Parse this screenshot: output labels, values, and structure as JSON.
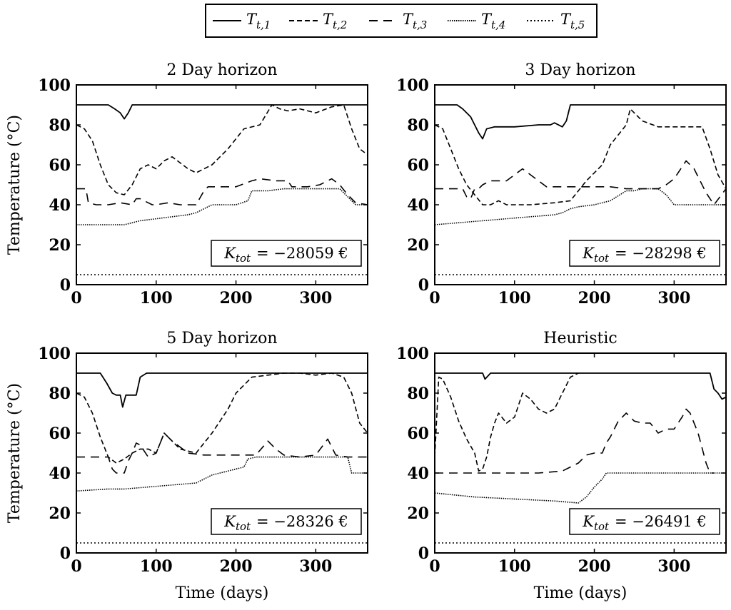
{
  "legend": {
    "entries": [
      {
        "label": "T",
        "sub": "t,1",
        "dash": "solid"
      },
      {
        "label": "T",
        "sub": "t,2",
        "dash": "dashed"
      },
      {
        "label": "T",
        "sub": "t,3",
        "dash": "longdash"
      },
      {
        "label": "T",
        "sub": "t,4",
        "dash": "densedot"
      },
      {
        "label": "T",
        "sub": "t,5",
        "dash": "dotted"
      }
    ]
  },
  "chart_data": [
    {
      "type": "line",
      "title": "2 Day horizon",
      "xlabel": "",
      "ylabel": "Temperature (°C)",
      "xlim": [
        0,
        365
      ],
      "ylim": [
        0,
        100
      ],
      "xticks": [
        0,
        100,
        200,
        300
      ],
      "yticks": [
        0,
        20,
        40,
        60,
        80,
        100
      ],
      "annotation": {
        "text": "K",
        "sub": "tot",
        "rest": "= −28059 €"
      },
      "series": [
        {
          "name": "T_t,1",
          "x": [
            0,
            40,
            48,
            55,
            60,
            65,
            70,
            80,
            120,
            200,
            300,
            365
          ],
          "y": [
            90,
            90,
            88,
            86,
            83,
            86,
            90,
            90,
            90,
            90,
            90,
            90
          ]
        },
        {
          "name": "T_t,2",
          "x": [
            0,
            10,
            20,
            30,
            40,
            50,
            60,
            70,
            80,
            90,
            100,
            110,
            120,
            140,
            150,
            170,
            190,
            210,
            230,
            245,
            255,
            265,
            280,
            300,
            320,
            335,
            345,
            355,
            365
          ],
          "y": [
            80,
            78,
            72,
            60,
            50,
            46,
            45,
            50,
            58,
            60,
            58,
            62,
            64,
            58,
            56,
            60,
            68,
            78,
            80,
            90,
            88,
            87,
            88,
            86,
            89,
            90,
            78,
            68,
            65
          ]
        },
        {
          "name": "T_t,3",
          "x": [
            0,
            12,
            15,
            25,
            30,
            40,
            55,
            70,
            75,
            80,
            90,
            95,
            100,
            115,
            130,
            150,
            160,
            165,
            170,
            200,
            220,
            230,
            250,
            265,
            270,
            290,
            305,
            320,
            330,
            340,
            350,
            365
          ],
          "y": [
            48,
            48,
            41,
            40,
            40,
            40,
            41,
            40,
            43,
            43,
            41,
            40,
            40,
            41,
            40,
            40,
            47,
            49,
            49,
            49,
            52,
            53,
            52,
            52,
            49,
            49,
            50,
            53,
            50,
            45,
            41,
            40
          ]
        },
        {
          "name": "T_t,4",
          "x": [
            0,
            30,
            50,
            60,
            80,
            100,
            120,
            140,
            150,
            160,
            170,
            180,
            200,
            215,
            220,
            240,
            260,
            290,
            330,
            340,
            350,
            365
          ],
          "y": [
            30,
            30,
            30,
            30,
            32,
            33,
            34,
            35,
            36,
            38,
            40,
            40,
            40,
            42,
            47,
            47,
            48,
            48,
            48,
            44,
            40,
            40
          ]
        },
        {
          "name": "T_t,5",
          "x": [
            0,
            365
          ],
          "y": [
            5,
            5
          ]
        }
      ]
    },
    {
      "type": "line",
      "title": "3 Day horizon",
      "xlabel": "",
      "ylabel": "",
      "xlim": [
        0,
        365
      ],
      "ylim": [
        0,
        100
      ],
      "xticks": [
        0,
        100,
        200,
        300
      ],
      "yticks": [
        0,
        20,
        40,
        60,
        80,
        100
      ],
      "annotation": {
        "text": "K",
        "sub": "tot",
        "rest": "= −28298 €"
      },
      "series": [
        {
          "name": "T_t,1",
          "x": [
            0,
            28,
            35,
            45,
            50,
            55,
            60,
            65,
            75,
            100,
            130,
            145,
            150,
            160,
            165,
            170,
            200,
            300,
            365
          ],
          "y": [
            90,
            90,
            88,
            84,
            80,
            76,
            73,
            78,
            79,
            79,
            80,
            80,
            81,
            79,
            82,
            90,
            90,
            90,
            90
          ]
        },
        {
          "name": "T_t,2",
          "x": [
            0,
            10,
            20,
            30,
            40,
            50,
            60,
            70,
            80,
            90,
            100,
            120,
            150,
            170,
            190,
            210,
            220,
            240,
            245,
            260,
            280,
            300,
            315,
            325,
            335,
            345,
            355,
            365
          ],
          "y": [
            80,
            78,
            68,
            58,
            50,
            45,
            40,
            40,
            42,
            40,
            40,
            40,
            41,
            42,
            52,
            60,
            70,
            80,
            88,
            82,
            79,
            79,
            79,
            79,
            79,
            68,
            55,
            48
          ]
        },
        {
          "name": "T_t,3",
          "x": [
            0,
            20,
            35,
            40,
            45,
            50,
            55,
            60,
            70,
            80,
            90,
            100,
            110,
            120,
            130,
            140,
            160,
            180,
            200,
            220,
            240,
            260,
            280,
            290,
            300,
            315,
            325,
            340,
            350,
            365
          ],
          "y": [
            48,
            48,
            48,
            44,
            43,
            48,
            48,
            50,
            52,
            52,
            52,
            55,
            58,
            55,
            52,
            49,
            49,
            49,
            49,
            49,
            48,
            48,
            48,
            50,
            53,
            62,
            58,
            46,
            40,
            48
          ]
        },
        {
          "name": "T_t,4",
          "x": [
            0,
            30,
            60,
            90,
            120,
            150,
            160,
            170,
            180,
            200,
            220,
            240,
            250,
            260,
            280,
            290,
            300,
            340,
            365
          ],
          "y": [
            30,
            31,
            32,
            33,
            34,
            35,
            36,
            38,
            39,
            40,
            42,
            47,
            47,
            48,
            48,
            45,
            40,
            40,
            40
          ]
        },
        {
          "name": "T_t,5",
          "x": [
            0,
            365
          ],
          "y": [
            5,
            5
          ]
        }
      ]
    },
    {
      "type": "line",
      "title": "5 Day horizon",
      "xlabel": "Time (days)",
      "ylabel": "Temperature (°C)",
      "xlim": [
        0,
        365
      ],
      "ylim": [
        0,
        100
      ],
      "xticks": [
        0,
        100,
        200,
        300
      ],
      "yticks": [
        0,
        20,
        40,
        60,
        80,
        100
      ],
      "annotation": {
        "text": "K",
        "sub": "tot",
        "rest": "= −28326 €"
      },
      "series": [
        {
          "name": "T_t,1",
          "x": [
            0,
            30,
            38,
            45,
            50,
            55,
            58,
            62,
            68,
            75,
            80,
            88,
            95,
            120,
            200,
            300,
            365
          ],
          "y": [
            90,
            90,
            85,
            80,
            79,
            79,
            73,
            79,
            79,
            79,
            88,
            90,
            90,
            90,
            90,
            90,
            90
          ]
        },
        {
          "name": "T_t,2",
          "x": [
            0,
            10,
            20,
            30,
            40,
            50,
            60,
            70,
            80,
            90,
            100,
            110,
            120,
            130,
            150,
            170,
            190,
            200,
            220,
            240,
            260,
            280,
            300,
            320,
            335,
            345,
            355,
            365
          ],
          "y": [
            80,
            78,
            70,
            58,
            48,
            45,
            47,
            50,
            52,
            52,
            50,
            60,
            56,
            52,
            50,
            60,
            72,
            80,
            88,
            89,
            90,
            90,
            89,
            90,
            88,
            80,
            65,
            60
          ]
        },
        {
          "name": "T_t,3",
          "x": [
            0,
            25,
            40,
            45,
            50,
            60,
            65,
            70,
            75,
            80,
            90,
            100,
            110,
            120,
            140,
            160,
            180,
            200,
            215,
            225,
            240,
            250,
            260,
            280,
            300,
            315,
            325,
            340,
            365
          ],
          "y": [
            48,
            48,
            48,
            42,
            40,
            40,
            46,
            50,
            55,
            54,
            48,
            50,
            60,
            56,
            50,
            49,
            49,
            49,
            49,
            49,
            56,
            52,
            49,
            48,
            49,
            57,
            49,
            48,
            48
          ]
        },
        {
          "name": "T_t,4",
          "x": [
            0,
            40,
            60,
            90,
            120,
            150,
            170,
            180,
            190,
            210,
            215,
            225,
            260,
            300,
            340,
            345,
            365
          ],
          "y": [
            31,
            32,
            32,
            33,
            34,
            35,
            39,
            40,
            41,
            43,
            47,
            48,
            48,
            48,
            48,
            40,
            40
          ]
        },
        {
          "name": "T_t,5",
          "x": [
            0,
            365
          ],
          "y": [
            5,
            5
          ]
        }
      ]
    },
    {
      "type": "line",
      "title": "Heuristic",
      "xlabel": "Time (days)",
      "ylabel": "",
      "xlim": [
        0,
        365
      ],
      "ylim": [
        0,
        100
      ],
      "xticks": [
        0,
        100,
        200,
        300
      ],
      "yticks": [
        0,
        20,
        40,
        60,
        80,
        100
      ],
      "annotation": {
        "text": "K",
        "sub": "tot",
        "rest": "= −26491 €"
      },
      "series": [
        {
          "name": "T_t,1",
          "x": [
            0,
            55,
            60,
            63,
            70,
            300,
            345,
            350,
            355,
            360,
            365
          ],
          "y": [
            90,
            90,
            90,
            87,
            90,
            90,
            90,
            82,
            80,
            77,
            78
          ]
        },
        {
          "name": "T_t,2",
          "x": [
            0,
            5,
            10,
            20,
            30,
            40,
            50,
            55,
            60,
            65,
            70,
            75,
            80,
            90,
            100,
            110,
            120,
            130,
            140,
            150,
            160,
            170,
            180
          ],
          "y": [
            48,
            88,
            87,
            78,
            66,
            57,
            50,
            41,
            42,
            48,
            58,
            65,
            70,
            65,
            68,
            80,
            77,
            72,
            70,
            72,
            80,
            88,
            90
          ]
        },
        {
          "name": "T_t,3",
          "x": [
            0,
            130,
            160,
            170,
            180,
            190,
            200,
            210,
            215,
            220,
            230,
            240,
            250,
            260,
            270,
            280,
            290,
            300,
            310,
            315,
            320,
            330,
            340,
            345,
            350
          ],
          "y": [
            40,
            40,
            41,
            43,
            45,
            49,
            50,
            50,
            55,
            58,
            66,
            70,
            66,
            65,
            65,
            60,
            62,
            62,
            68,
            72,
            70,
            60,
            45,
            40,
            40
          ]
        },
        {
          "name": "T_t,4",
          "x": [
            0,
            50,
            100,
            150,
            180,
            190,
            200,
            210,
            215,
            220,
            250,
            300,
            350,
            365
          ],
          "y": [
            30,
            28,
            27,
            26,
            25,
            28,
            33,
            37,
            40,
            40,
            40,
            40,
            40,
            40
          ]
        },
        {
          "name": "T_t,5",
          "x": [
            0,
            365
          ],
          "y": [
            5,
            5
          ]
        }
      ]
    }
  ]
}
